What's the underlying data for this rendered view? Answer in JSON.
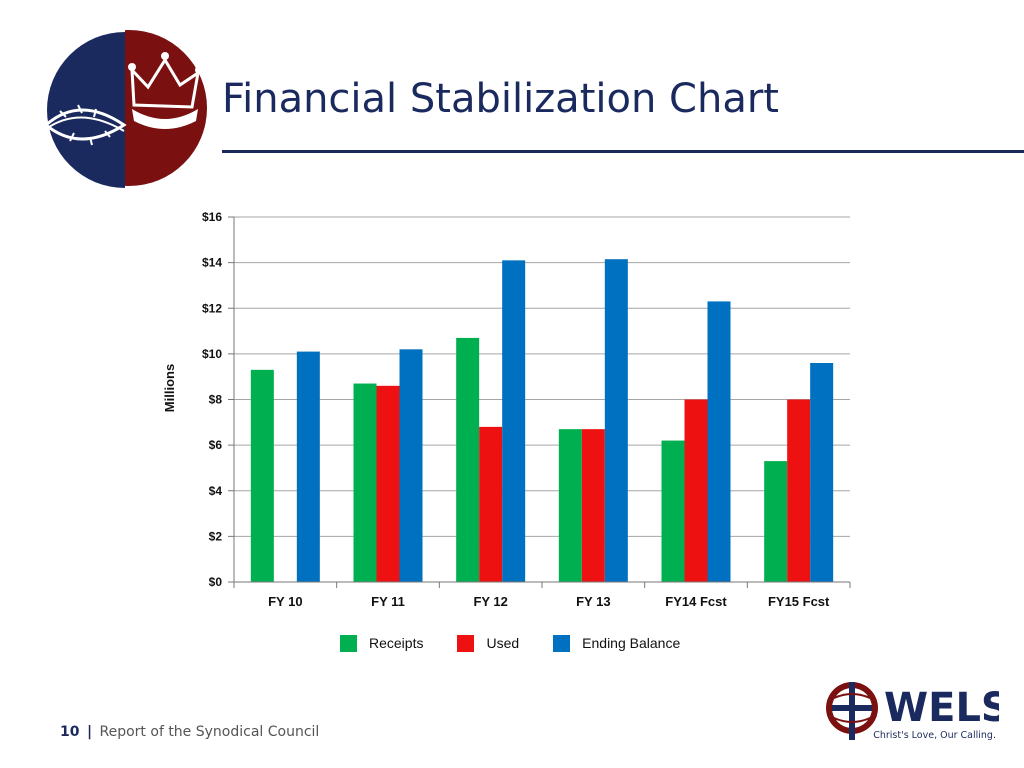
{
  "slide": {
    "title": "Financial Stabilization Chart",
    "footer_page": "10",
    "footer_separator": "|",
    "footer_text": "Report of the Synodical Council"
  },
  "logos": {
    "top_left": "synod-emblem-crown-thorns",
    "bottom_right": {
      "wordmark": "WELS",
      "tagline": "Christ's Love, Our Calling."
    }
  },
  "colors": {
    "title": "#1b2a5e",
    "receipts": "#00b050",
    "used": "#ee1111",
    "ending_balance": "#0070c0",
    "grid": "#a6a6a6",
    "emblem_navy": "#1b2a5e",
    "emblem_maroon": "#7a1010"
  },
  "chart_data": {
    "type": "bar",
    "title": "",
    "xlabel": "",
    "ylabel": "Millions",
    "categories": [
      "FY 10",
      "FY 11",
      "FY 12",
      "FY 13",
      "FY14 Fcst",
      "FY15 Fcst"
    ],
    "series": [
      {
        "name": "Receipts",
        "color": "#00b050",
        "values": [
          9.3,
          8.7,
          10.7,
          6.7,
          6.2,
          5.3
        ]
      },
      {
        "name": "Used",
        "color": "#ee1111",
        "values": [
          0,
          8.6,
          6.8,
          6.7,
          8.0,
          8.0
        ]
      },
      {
        "name": "Ending Balance",
        "color": "#0070c0",
        "values": [
          10.1,
          10.2,
          14.1,
          14.15,
          12.3,
          9.6
        ]
      }
    ],
    "ylim": [
      0,
      16
    ],
    "yticks": [
      0,
      2,
      4,
      6,
      8,
      10,
      12,
      14,
      16
    ],
    "ytick_labels": [
      "$0",
      "$2",
      "$4",
      "$6",
      "$8",
      "$10",
      "$12",
      "$14",
      "$16"
    ],
    "grid": true,
    "legend": "bottom"
  }
}
